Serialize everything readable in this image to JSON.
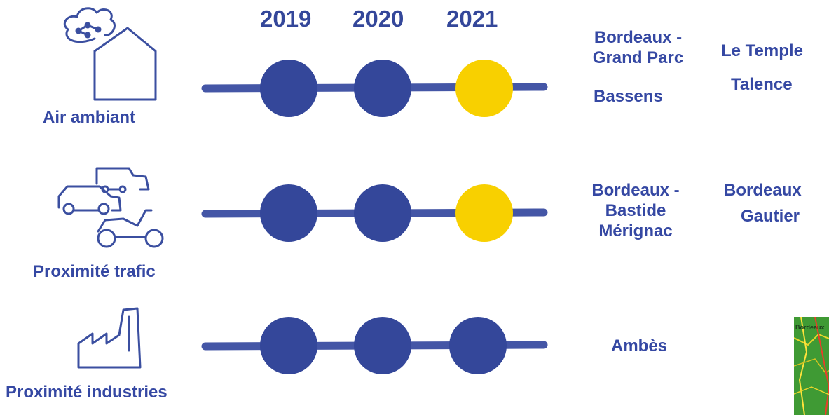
{
  "years": [
    "2019",
    "2020",
    "2021"
  ],
  "colors": {
    "dot_blue": "#34479a",
    "dot_yellow": "#f8d000",
    "line": "#4456a6",
    "icon": "#3b4fa0"
  },
  "rows": [
    {
      "label": "Air ambiant",
      "icon": "cloud-house-icon",
      "dots": [
        "blue",
        "blue",
        "yellow"
      ],
      "sites": [
        "Bordeaux -",
        "Grand Parc",
        "Bassens",
        "Le Temple",
        "Talence"
      ]
    },
    {
      "label": "Proximité trafic",
      "icon": "vehicles-icon",
      "dots": [
        "blue",
        "blue",
        "yellow"
      ],
      "sites": [
        "Bordeaux -",
        "Bastide",
        "Mérignac",
        "Bordeaux",
        "Gautier"
      ]
    },
    {
      "label": "Proximité industries",
      "icon": "factory-icon",
      "dots": [
        "blue",
        "blue",
        "blue"
      ],
      "sites": [
        "Ambès"
      ]
    }
  ],
  "map": {
    "icon": "map-thumbnail-icon",
    "label": "Bordeaux"
  }
}
